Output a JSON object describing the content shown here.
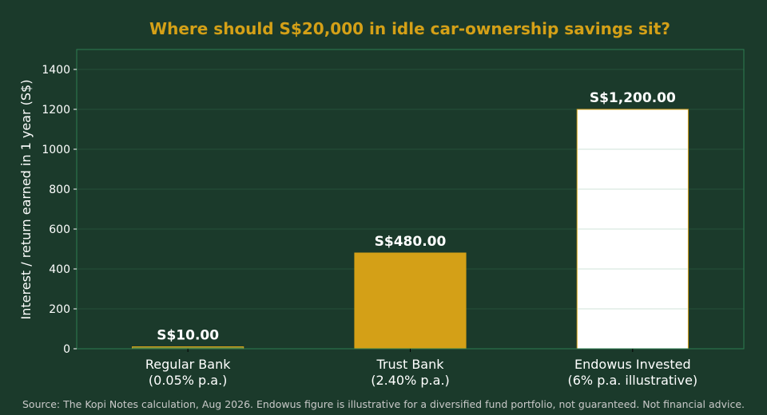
{
  "colors": {
    "background": "#1b3a2b",
    "title": "#d4a017",
    "text": "#ffffff",
    "grid": "#25503a",
    "axes_frame": "#2e7d50",
    "source_text": "#c9c9c9"
  },
  "chart_data": {
    "type": "bar",
    "title": "Where should S$20,000 in idle car-ownership savings sit?",
    "ylabel": "Interest / return earned in 1 year (S$)",
    "xlabel": "",
    "ylim": [
      0,
      1500
    ],
    "yticks": [
      0,
      200,
      400,
      600,
      800,
      1000,
      1200,
      1400
    ],
    "grid": true,
    "categories": [
      [
        "Regular Bank",
        "(0.05% p.a.)"
      ],
      [
        "Trust Bank",
        "(2.40% p.a.)"
      ],
      [
        "Endowus Invested",
        "(6% p.a. illustrative)"
      ]
    ],
    "values": [
      10,
      480,
      1200
    ],
    "data_labels": [
      "S$10.00",
      "S$480.00",
      "S$1,200.00"
    ],
    "bar_colors": [
      "#7a8f3a",
      "#d4a017",
      "#ffffff"
    ],
    "bar_edge_color": "#d4a017"
  },
  "footer": {
    "source": "Source: The Kopi Notes calculation, Aug 2026. Endowus figure is illustrative for a diversified fund portfolio, not guaranteed. Not financial advice."
  }
}
